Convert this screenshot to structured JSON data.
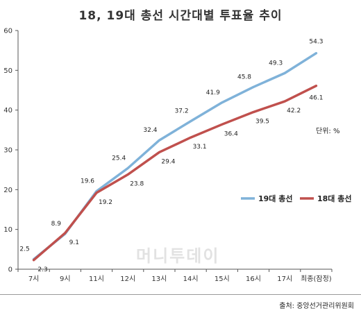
{
  "chart_data": {
    "type": "line",
    "title": "18, 19대 총선 시간대별 투표율 추이",
    "categories": [
      "7시",
      "9시",
      "11시",
      "12시",
      "13시",
      "14시",
      "15시",
      "16시",
      "17시",
      "최종(잠정)"
    ],
    "series": [
      {
        "name": "19대 총선",
        "color": "#7fb2d9",
        "values": [
          2.5,
          8.9,
          19.6,
          25.4,
          32.4,
          37.2,
          41.9,
          45.8,
          49.3,
          54.3
        ]
      },
      {
        "name": "18대 총선",
        "color": "#c0504d",
        "values": [
          2.3,
          9.1,
          19.2,
          23.8,
          29.4,
          33.1,
          36.4,
          39.5,
          42.2,
          46.1
        ]
      }
    ],
    "ylim": [
      0,
      60
    ],
    "yticks": [
      0,
      10,
      20,
      30,
      40,
      50,
      60
    ],
    "unit_label": "단위: %",
    "legend_position": "right",
    "grid": false
  },
  "watermark": "머니투데이",
  "source": "출처: 중앙선거관리위원회"
}
